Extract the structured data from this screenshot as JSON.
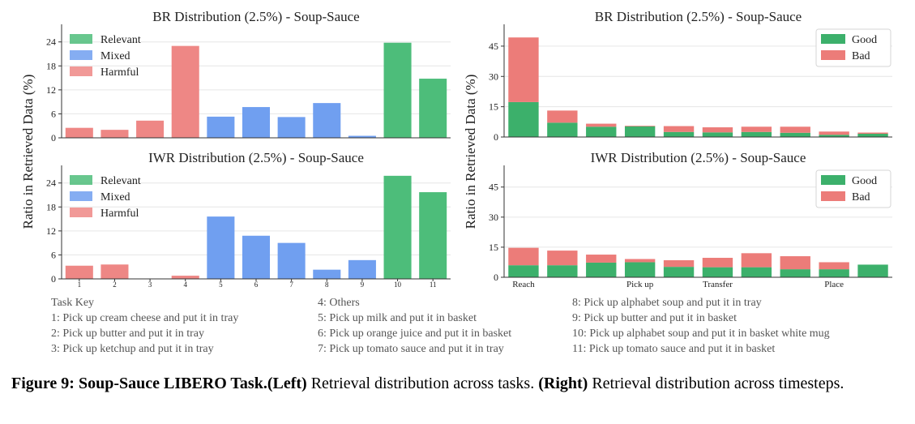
{
  "colors": {
    "relevant": "#4dbd7a",
    "mixed": "#709ff0",
    "harmful": "#ee8785",
    "good": "#3cb06b",
    "bad": "#ec7c79",
    "grid": "#e6e6e6",
    "axis": "#333333"
  },
  "shared_ylabel": "Ratio in Retrieved Data (%)",
  "chart_data": [
    {
      "id": "left-top",
      "type": "bar",
      "title": "BR Distribution (2.5%) - Soup-Sauce",
      "categories": [
        "1",
        "2",
        "3",
        "4",
        "5",
        "6",
        "7",
        "8",
        "9",
        "10",
        "11"
      ],
      "show_tick_labels": false,
      "values": [
        2.5,
        2.0,
        4.3,
        23.0,
        5.3,
        7.7,
        5.2,
        8.7,
        0.5,
        23.8,
        14.8
      ],
      "groups": [
        "Harmful",
        "Harmful",
        "Harmful",
        "Harmful",
        "Mixed",
        "Mixed",
        "Mixed",
        "Mixed",
        "Mixed",
        "Relevant",
        "Relevant"
      ],
      "legend": [
        "Relevant",
        "Mixed",
        "Harmful"
      ],
      "legend_position": "top-left",
      "yticks": [
        0,
        6,
        12,
        18,
        24
      ],
      "ylim": [
        0,
        28
      ],
      "grid": true
    },
    {
      "id": "left-bottom",
      "type": "bar",
      "title": "IWR Distribution (2.5%) - Soup-Sauce",
      "categories": [
        "1",
        "2",
        "3",
        "4",
        "5",
        "6",
        "7",
        "8",
        "9",
        "10",
        "11"
      ],
      "show_tick_labels": true,
      "values": [
        3.3,
        3.6,
        0,
        0.8,
        15.6,
        10.8,
        9.0,
        2.3,
        4.7,
        25.8,
        21.7
      ],
      "groups": [
        "Harmful",
        "Harmful",
        "Harmful",
        "Harmful",
        "Mixed",
        "Mixed",
        "Mixed",
        "Mixed",
        "Mixed",
        "Relevant",
        "Relevant"
      ],
      "legend": [
        "Relevant",
        "Mixed",
        "Harmful"
      ],
      "legend_position": "top-left",
      "yticks": [
        0,
        6,
        12,
        18,
        24
      ],
      "ylim": [
        0,
        28
      ],
      "grid": true
    },
    {
      "id": "right-top",
      "type": "bar",
      "stacked": true,
      "title": "BR Distribution (2.5%) - Soup-Sauce",
      "series": [
        {
          "name": "Good",
          "values": [
            17.3,
            7.1,
            5.1,
            5.3,
            2.5,
            2.3,
            2.5,
            2.1,
            1.1,
            1.6
          ]
        },
        {
          "name": "Bad",
          "values": [
            32.0,
            6.0,
            1.5,
            0.3,
            2.9,
            2.5,
            2.6,
            3.0,
            1.6,
            0.6
          ]
        }
      ],
      "xtick_labels": [],
      "legend_position": "top-right",
      "yticks": [
        0,
        15,
        30,
        45
      ],
      "ylim": [
        0,
        55
      ],
      "grid": true
    },
    {
      "id": "right-bottom",
      "type": "bar",
      "stacked": true,
      "title": "IWR Distribution (2.5%) - Soup-Sauce",
      "series": [
        {
          "name": "Good",
          "values": [
            6.0,
            6.0,
            7.3,
            7.5,
            5.2,
            5.0,
            5.0,
            4.0,
            4.0,
            6.3
          ]
        },
        {
          "name": "Bad",
          "values": [
            8.7,
            7.3,
            4.0,
            1.6,
            3.3,
            4.7,
            7.0,
            6.5,
            3.5,
            0
          ]
        }
      ],
      "xtick_labels": [
        {
          "index": 0,
          "label": "Reach"
        },
        {
          "index": 3,
          "label": "Pick up"
        },
        {
          "index": 5,
          "label": "Transfer"
        },
        {
          "index": 8,
          "label": "Place"
        }
      ],
      "legend_position": "top-right",
      "yticks": [
        0,
        15,
        30,
        45
      ],
      "ylim": [
        0,
        55
      ],
      "grid": true
    }
  ],
  "task_key": {
    "title": "Task Key",
    "col1": [
      "1: Pick up cream cheese and put it in tray",
      "2: Pick up butter and put it in tray",
      "3: Pick up ketchup and put it in tray"
    ],
    "col2": [
      "4: Others",
      "5: Pick up milk and put it in basket",
      "6: Pick up orange juice and put it in basket",
      "7: Pick up tomato sauce and put it in tray"
    ],
    "col3": [
      "8: Pick up alphabet soup and put it in tray",
      "9: Pick up butter and put it in basket",
      "10: Pick up alphabet soup and put it in basket white mug",
      "11: Pick up tomato sauce and put it in basket"
    ]
  },
  "caption": {
    "label": "Figure 9: Soup-Sauce LIBERO Task.",
    "left_bold": "(Left)",
    "left_text": " Retrieval distribution across tasks. ",
    "right_bold": "(Right)",
    "right_text": " Retrieval distribution across timesteps."
  }
}
